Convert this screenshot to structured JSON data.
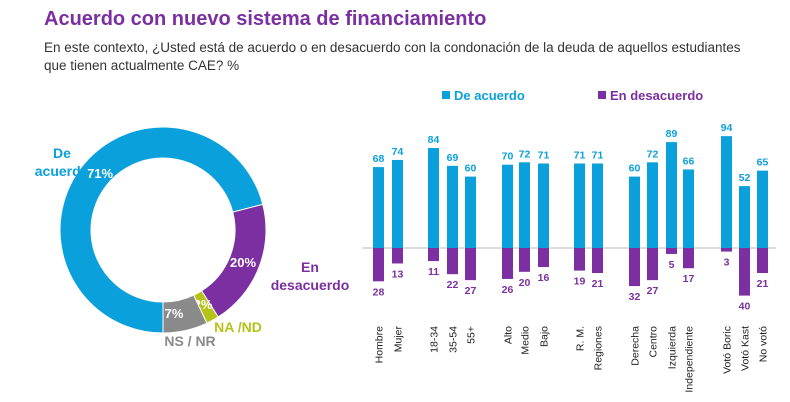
{
  "title": "Acuerdo con nuevo sistema de financiamiento",
  "subtitle": "En este contexto, ¿Usted está de acuerdo o en desacuerdo con la condonación de la deuda de aquellos estudiantes que tienen actualmente CAE? %",
  "colors": {
    "agree": "#0aa0dc",
    "disagree": "#7b2fa0",
    "na": "#b5c21a",
    "ns": "#8a8a8a",
    "title": "#7b2fa0"
  },
  "chart_data": [
    {
      "type": "pie",
      "variant": "donut",
      "slices": [
        {
          "label": "De acuerdo",
          "value": 71,
          "value_label": "71%",
          "color": "#0aa0dc"
        },
        {
          "label": "En desacuerdo",
          "value": 20,
          "value_label": "20%",
          "color": "#7b2fa0"
        },
        {
          "label": "NA /ND",
          "value": 2,
          "value_label": "2%",
          "color": "#b5c21a"
        },
        {
          "label": "NS / NR",
          "value": 7,
          "value_label": "7%",
          "color": "#8a8a8a"
        }
      ]
    },
    {
      "type": "bar",
      "legend": "top",
      "legend_entries": [
        "De acuerdo",
        "En desacuerdo"
      ],
      "categories": [
        "Hombre",
        "Mujer",
        "18-34",
        "35-54",
        "55+",
        "Alto",
        "Medio",
        "Bajo",
        "R. M.",
        "Regiones",
        "Derecha",
        "Centro",
        "Izquierda",
        "Independiente",
        "Votó Boric",
        "Votó Kast",
        "No votó"
      ],
      "groups": [
        [
          0,
          1
        ],
        [
          2,
          3,
          4
        ],
        [
          5,
          6,
          7
        ],
        [
          8,
          9
        ],
        [
          10,
          11,
          12,
          13
        ],
        [
          14,
          15,
          16
        ]
      ],
      "series": [
        {
          "name": "De acuerdo",
          "values": [
            68,
            74,
            84,
            69,
            60,
            70,
            72,
            71,
            71,
            71,
            60,
            72,
            89,
            66,
            94,
            52,
            65
          ]
        },
        {
          "name": "En desacuerdo",
          "values": [
            28,
            13,
            11,
            22,
            27,
            26,
            20,
            16,
            19,
            21,
            32,
            27,
            5,
            17,
            3,
            40,
            21
          ]
        }
      ]
    }
  ]
}
